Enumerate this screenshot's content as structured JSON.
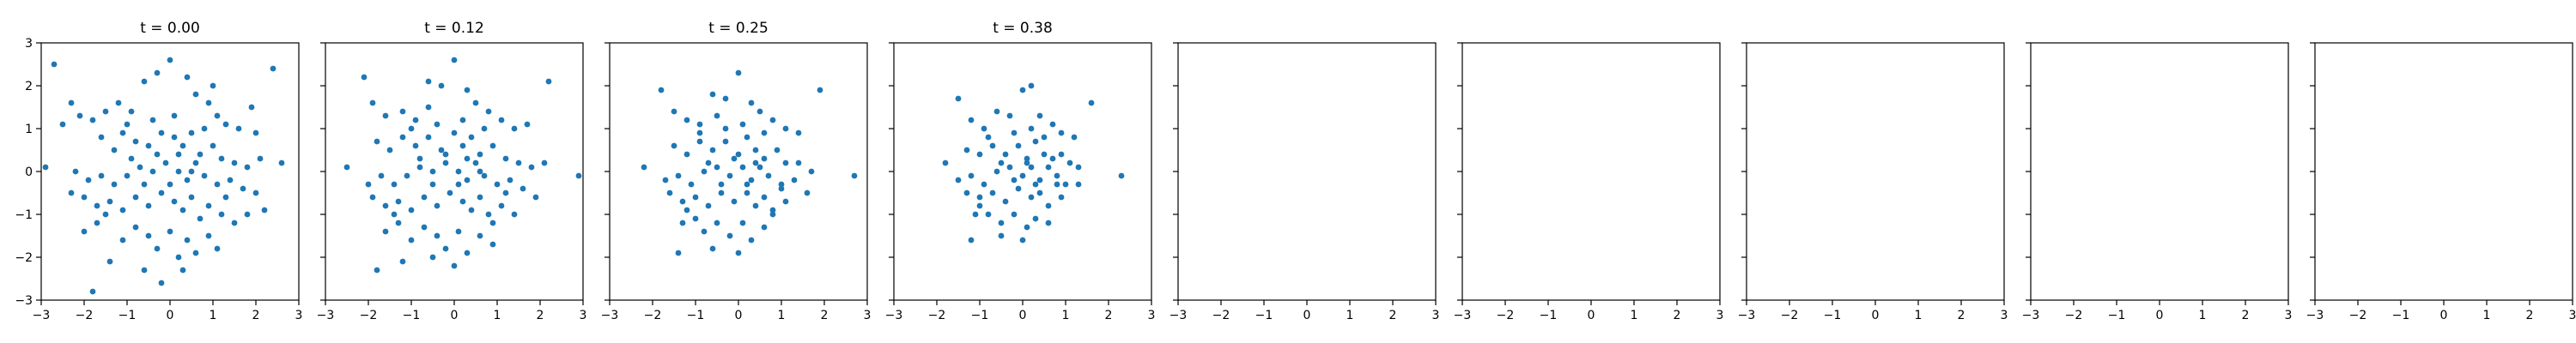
{
  "figure": {
    "background": "#ffffff",
    "marker_color": "#1f77b4",
    "axes_color": "#000000"
  },
  "chart_data": [
    {
      "type": "scatter",
      "title": "t = 0.00",
      "xlim": [
        -3,
        3
      ],
      "ylim": [
        -3,
        3
      ],
      "xticks": [
        -3,
        -2,
        -1,
        0,
        1,
        2,
        3
      ],
      "yticks": [
        -3,
        -2,
        -1,
        0,
        1,
        2,
        3
      ],
      "grid": false,
      "points": [
        [
          -2.7,
          2.5
        ],
        [
          -2.3,
          1.6
        ],
        [
          -2.1,
          1.3
        ],
        [
          -2.5,
          1.1
        ],
        [
          -1.8,
          1.2
        ],
        [
          -1.5,
          1.4
        ],
        [
          -1.2,
          1.6
        ],
        [
          -0.9,
          1.4
        ],
        [
          -0.6,
          2.1
        ],
        [
          -0.3,
          2.3
        ],
        [
          0.0,
          2.6
        ],
        [
          0.4,
          2.2
        ],
        [
          0.6,
          1.8
        ],
        [
          0.9,
          1.6
        ],
        [
          1.1,
          1.3
        ],
        [
          1.3,
          1.1
        ],
        [
          1.6,
          1.0
        ],
        [
          2.0,
          0.9
        ],
        [
          2.4,
          2.4
        ],
        [
          1.9,
          1.5
        ],
        [
          1.0,
          2.0
        ],
        [
          -1.6,
          0.8
        ],
        [
          -1.3,
          0.5
        ],
        [
          -1.1,
          0.9
        ],
        [
          -0.8,
          0.7
        ],
        [
          -0.5,
          0.6
        ],
        [
          -0.2,
          0.9
        ],
        [
          0.1,
          0.8
        ],
        [
          0.3,
          0.6
        ],
        [
          0.5,
          0.9
        ],
        [
          0.7,
          0.4
        ],
        [
          1.0,
          0.6
        ],
        [
          1.2,
          0.3
        ],
        [
          1.5,
          0.2
        ],
        [
          1.8,
          0.1
        ],
        [
          2.1,
          0.3
        ],
        [
          2.6,
          0.2
        ],
        [
          -2.9,
          0.1
        ],
        [
          -2.2,
          0.0
        ],
        [
          -1.9,
          -0.2
        ],
        [
          -1.6,
          -0.1
        ],
        [
          -1.3,
          -0.3
        ],
        [
          -1.0,
          -0.1
        ],
        [
          -0.7,
          0.1
        ],
        [
          -0.4,
          0.0
        ],
        [
          -0.1,
          0.2
        ],
        [
          0.2,
          0.0
        ],
        [
          0.4,
          -0.2
        ],
        [
          0.6,
          0.2
        ],
        [
          0.8,
          -0.1
        ],
        [
          1.1,
          -0.3
        ],
        [
          1.4,
          -0.2
        ],
        [
          1.7,
          -0.4
        ],
        [
          2.0,
          -0.5
        ],
        [
          2.2,
          -0.9
        ],
        [
          -2.3,
          -0.5
        ],
        [
          -2.0,
          -0.6
        ],
        [
          -1.7,
          -0.8
        ],
        [
          -1.4,
          -0.7
        ],
        [
          -1.1,
          -0.9
        ],
        [
          -0.8,
          -0.6
        ],
        [
          -0.5,
          -0.8
        ],
        [
          -0.2,
          -0.5
        ],
        [
          0.1,
          -0.7
        ],
        [
          0.3,
          -0.9
        ],
        [
          0.5,
          -0.6
        ],
        [
          0.7,
          -1.1
        ],
        [
          0.9,
          -0.8
        ],
        [
          1.2,
          -1.0
        ],
        [
          1.5,
          -1.2
        ],
        [
          1.8,
          -1.0
        ],
        [
          -2.0,
          -1.4
        ],
        [
          -1.7,
          -1.2
        ],
        [
          -1.4,
          -2.1
        ],
        [
          -1.1,
          -1.6
        ],
        [
          -0.8,
          -1.3
        ],
        [
          -0.5,
          -1.5
        ],
        [
          -0.3,
          -1.8
        ],
        [
          0.0,
          -1.4
        ],
        [
          0.2,
          -2.0
        ],
        [
          0.4,
          -1.6
        ],
        [
          0.6,
          -1.9
        ],
        [
          0.9,
          -1.5
        ],
        [
          1.1,
          -1.8
        ],
        [
          -1.8,
          -2.8
        ],
        [
          -0.6,
          -2.3
        ],
        [
          -0.2,
          -2.6
        ],
        [
          0.3,
          -2.3
        ],
        [
          -0.9,
          0.3
        ],
        [
          -0.6,
          -0.3
        ],
        [
          -0.3,
          0.4
        ],
        [
          0.0,
          -0.3
        ],
        [
          0.2,
          0.4
        ],
        [
          0.5,
          0.0
        ],
        [
          -1.0,
          1.1
        ],
        [
          0.8,
          1.0
        ],
        [
          -0.4,
          1.2
        ],
        [
          0.1,
          1.3
        ],
        [
          -1.5,
          -1.0
        ],
        [
          1.3,
          -0.6
        ]
      ]
    },
    {
      "type": "scatter",
      "title": "t = 0.12",
      "xlim": [
        -3,
        3
      ],
      "ylim": [
        -3,
        3
      ],
      "xticks": [
        -3,
        -2,
        -1,
        0,
        1,
        2,
        3
      ],
      "yticks": [],
      "grid": false,
      "points": [
        [
          -2.1,
          2.2
        ],
        [
          -1.9,
          1.6
        ],
        [
          -1.6,
          1.3
        ],
        [
          -1.2,
          1.4
        ],
        [
          -0.9,
          1.2
        ],
        [
          -0.6,
          2.1
        ],
        [
          -0.3,
          2.0
        ],
        [
          0.0,
          2.6
        ],
        [
          0.3,
          1.9
        ],
        [
          0.5,
          1.6
        ],
        [
          0.8,
          1.4
        ],
        [
          1.1,
          1.2
        ],
        [
          1.4,
          1.0
        ],
        [
          1.7,
          1.1
        ],
        [
          2.2,
          2.1
        ],
        [
          -2.5,
          0.1
        ],
        [
          -1.8,
          0.7
        ],
        [
          -1.5,
          0.5
        ],
        [
          -1.2,
          0.8
        ],
        [
          -0.9,
          0.6
        ],
        [
          -0.6,
          0.8
        ],
        [
          -0.3,
          0.5
        ],
        [
          0.0,
          0.9
        ],
        [
          0.2,
          0.6
        ],
        [
          0.4,
          0.8
        ],
        [
          0.6,
          0.4
        ],
        [
          0.9,
          0.6
        ],
        [
          1.2,
          0.3
        ],
        [
          1.5,
          0.2
        ],
        [
          1.8,
          0.1
        ],
        [
          2.1,
          0.2
        ],
        [
          2.9,
          -0.1
        ],
        [
          -2.0,
          -0.3
        ],
        [
          -1.7,
          -0.1
        ],
        [
          -1.4,
          -0.3
        ],
        [
          -1.1,
          -0.1
        ],
        [
          -0.8,
          0.1
        ],
        [
          -0.5,
          0.0
        ],
        [
          -0.2,
          0.2
        ],
        [
          0.1,
          0.0
        ],
        [
          0.3,
          -0.2
        ],
        [
          0.5,
          0.2
        ],
        [
          0.7,
          -0.1
        ],
        [
          1.0,
          -0.3
        ],
        [
          1.3,
          -0.2
        ],
        [
          1.6,
          -0.4
        ],
        [
          1.9,
          -0.6
        ],
        [
          -1.9,
          -0.6
        ],
        [
          -1.6,
          -0.8
        ],
        [
          -1.3,
          -0.7
        ],
        [
          -1.0,
          -0.9
        ],
        [
          -0.7,
          -0.6
        ],
        [
          -0.4,
          -0.8
        ],
        [
          -0.1,
          -0.5
        ],
        [
          0.2,
          -0.7
        ],
        [
          0.4,
          -0.9
        ],
        [
          0.6,
          -0.6
        ],
        [
          0.8,
          -1.0
        ],
        [
          1.1,
          -0.8
        ],
        [
          1.4,
          -1.0
        ],
        [
          -1.6,
          -1.4
        ],
        [
          -1.3,
          -1.2
        ],
        [
          -1.0,
          -1.6
        ],
        [
          -0.7,
          -1.3
        ],
        [
          -0.4,
          -1.5
        ],
        [
          -0.2,
          -1.8
        ],
        [
          0.1,
          -1.4
        ],
        [
          0.3,
          -1.9
        ],
        [
          0.6,
          -1.5
        ],
        [
          0.9,
          -1.7
        ],
        [
          -1.2,
          -2.1
        ],
        [
          -0.5,
          -2.0
        ],
        [
          0.0,
          -2.2
        ],
        [
          -1.8,
          -2.3
        ],
        [
          -0.8,
          0.3
        ],
        [
          -0.5,
          -0.3
        ],
        [
          -0.2,
          0.4
        ],
        [
          0.1,
          -0.3
        ],
        [
          0.3,
          0.3
        ],
        [
          0.6,
          0.0
        ],
        [
          -1.0,
          1.0
        ],
        [
          0.7,
          1.0
        ],
        [
          -0.4,
          1.1
        ],
        [
          0.2,
          1.2
        ],
        [
          -1.4,
          -1.0
        ],
        [
          1.2,
          -0.5
        ],
        [
          -0.6,
          1.5
        ],
        [
          0.9,
          -1.2
        ]
      ]
    },
    {
      "type": "scatter",
      "title": "t = 0.25",
      "xlim": [
        -3,
        3
      ],
      "ylim": [
        -3,
        3
      ],
      "xticks": [
        -3,
        -2,
        -1,
        0,
        1,
        2,
        3
      ],
      "yticks": [],
      "grid": false,
      "points": [
        [
          -1.8,
          1.9
        ],
        [
          -1.5,
          1.4
        ],
        [
          -1.2,
          1.2
        ],
        [
          -0.9,
          1.1
        ],
        [
          -0.6,
          1.8
        ],
        [
          -0.3,
          1.7
        ],
        [
          0.0,
          2.3
        ],
        [
          0.3,
          1.6
        ],
        [
          0.5,
          1.4
        ],
        [
          0.8,
          1.2
        ],
        [
          1.1,
          1.0
        ],
        [
          1.4,
          0.9
        ],
        [
          1.9,
          1.9
        ],
        [
          -2.2,
          0.1
        ],
        [
          -1.5,
          0.6
        ],
        [
          -1.2,
          0.4
        ],
        [
          -0.9,
          0.7
        ],
        [
          -0.6,
          0.5
        ],
        [
          -0.3,
          0.7
        ],
        [
          0.0,
          0.4
        ],
        [
          0.2,
          0.8
        ],
        [
          0.4,
          0.5
        ],
        [
          0.6,
          0.3
        ],
        [
          0.9,
          0.5
        ],
        [
          1.1,
          0.2
        ],
        [
          1.4,
          0.2
        ],
        [
          1.7,
          0.0
        ],
        [
          2.7,
          -0.1
        ],
        [
          -1.7,
          -0.2
        ],
        [
          -1.4,
          -0.1
        ],
        [
          -1.1,
          -0.3
        ],
        [
          -0.8,
          0.0
        ],
        [
          -0.5,
          0.1
        ],
        [
          -0.2,
          -0.1
        ],
        [
          0.1,
          0.1
        ],
        [
          0.3,
          -0.2
        ],
        [
          0.5,
          0.1
        ],
        [
          0.7,
          -0.1
        ],
        [
          1.0,
          -0.3
        ],
        [
          1.3,
          -0.2
        ],
        [
          1.6,
          -0.5
        ],
        [
          -1.6,
          -0.5
        ],
        [
          -1.3,
          -0.7
        ],
        [
          -1.0,
          -0.6
        ],
        [
          -0.7,
          -0.8
        ],
        [
          -0.4,
          -0.5
        ],
        [
          -0.1,
          -0.7
        ],
        [
          0.2,
          -0.5
        ],
        [
          0.4,
          -0.8
        ],
        [
          0.6,
          -0.6
        ],
        [
          0.8,
          -0.9
        ],
        [
          1.1,
          -0.7
        ],
        [
          -1.3,
          -1.2
        ],
        [
          -1.0,
          -1.1
        ],
        [
          -0.8,
          -1.4
        ],
        [
          -0.5,
          -1.2
        ],
        [
          -0.2,
          -1.5
        ],
        [
          0.1,
          -1.2
        ],
        [
          0.3,
          -1.6
        ],
        [
          0.6,
          -1.3
        ],
        [
          -1.4,
          -1.9
        ],
        [
          -0.6,
          -1.8
        ],
        [
          0.0,
          -1.9
        ],
        [
          -0.7,
          0.2
        ],
        [
          -0.4,
          -0.3
        ],
        [
          -0.1,
          0.3
        ],
        [
          0.2,
          -0.3
        ],
        [
          0.4,
          0.2
        ],
        [
          -0.9,
          0.9
        ],
        [
          0.6,
          0.9
        ],
        [
          -0.3,
          1.0
        ],
        [
          0.1,
          1.1
        ],
        [
          -1.2,
          -0.9
        ],
        [
          1.0,
          -0.4
        ],
        [
          -0.5,
          1.3
        ],
        [
          0.8,
          -1.0
        ]
      ]
    },
    {
      "type": "scatter",
      "title": "t = 0.38",
      "xlim": [
        -3,
        3
      ],
      "ylim": [
        -3,
        3
      ],
      "xticks": [
        -3,
        -2,
        -1,
        0,
        1,
        2,
        3
      ],
      "yticks": [],
      "grid": false,
      "points": [
        [
          -1.5,
          1.7
        ],
        [
          -1.2,
          1.2
        ],
        [
          -0.9,
          1.0
        ],
        [
          -0.6,
          1.4
        ],
        [
          -0.3,
          1.3
        ],
        [
          0.0,
          1.9
        ],
        [
          0.2,
          2.0
        ],
        [
          0.4,
          1.3
        ],
        [
          0.7,
          1.1
        ],
        [
          0.9,
          0.9
        ],
        [
          1.2,
          0.8
        ],
        [
          1.6,
          1.6
        ],
        [
          -1.8,
          0.2
        ],
        [
          -1.3,
          0.5
        ],
        [
          -1.0,
          0.4
        ],
        [
          -0.7,
          0.6
        ],
        [
          -0.4,
          0.4
        ],
        [
          -0.1,
          0.6
        ],
        [
          0.1,
          0.3
        ],
        [
          0.3,
          0.7
        ],
        [
          0.5,
          0.4
        ],
        [
          0.7,
          0.3
        ],
        [
          0.9,
          0.4
        ],
        [
          1.1,
          0.2
        ],
        [
          1.3,
          0.1
        ],
        [
          2.3,
          -0.1
        ],
        [
          -1.5,
          -0.2
        ],
        [
          -1.2,
          -0.1
        ],
        [
          -0.9,
          -0.3
        ],
        [
          -0.6,
          0.0
        ],
        [
          -0.3,
          0.1
        ],
        [
          0.0,
          -0.1
        ],
        [
          0.2,
          0.1
        ],
        [
          0.4,
          -0.2
        ],
        [
          0.6,
          0.1
        ],
        [
          0.8,
          -0.1
        ],
        [
          1.0,
          -0.3
        ],
        [
          1.3,
          -0.3
        ],
        [
          -1.3,
          -0.5
        ],
        [
          -1.0,
          -0.6
        ],
        [
          -0.7,
          -0.5
        ],
        [
          -0.4,
          -0.7
        ],
        [
          -0.1,
          -0.4
        ],
        [
          0.2,
          -0.6
        ],
        [
          0.4,
          -0.5
        ],
        [
          0.6,
          -0.8
        ],
        [
          0.9,
          -0.6
        ],
        [
          -1.1,
          -1.0
        ],
        [
          -0.8,
          -1.0
        ],
        [
          -0.5,
          -1.2
        ],
        [
          -0.2,
          -1.0
        ],
        [
          0.1,
          -1.3
        ],
        [
          0.3,
          -1.1
        ],
        [
          0.6,
          -1.2
        ],
        [
          -1.2,
          -1.6
        ],
        [
          -0.5,
          -1.5
        ],
        [
          0.0,
          -1.6
        ],
        [
          -0.5,
          0.2
        ],
        [
          -0.2,
          -0.2
        ],
        [
          0.1,
          0.2
        ],
        [
          0.3,
          -0.3
        ],
        [
          -0.8,
          0.8
        ],
        [
          0.5,
          0.8
        ],
        [
          -0.2,
          0.9
        ],
        [
          0.2,
          1.0
        ],
        [
          -1.0,
          -0.8
        ],
        [
          0.8,
          -0.3
        ]
      ]
    },
    {
      "type": "scatter",
      "title": "",
      "xlim": [
        -3,
        3
      ],
      "ylim": [
        -3,
        3
      ],
      "xticks": [
        -3,
        -2,
        -1,
        0,
        1,
        2,
        3
      ],
      "yticks": [],
      "grid": false,
      "points": []
    },
    {
      "type": "scatter",
      "title": "",
      "xlim": [
        -3,
        3
      ],
      "ylim": [
        -3,
        3
      ],
      "xticks": [
        -3,
        -2,
        -1,
        0,
        1,
        2,
        3
      ],
      "yticks": [],
      "grid": false,
      "points": []
    },
    {
      "type": "scatter",
      "title": "",
      "xlim": [
        -3,
        3
      ],
      "ylim": [
        -3,
        3
      ],
      "xticks": [
        -3,
        -2,
        -1,
        0,
        1,
        2,
        3
      ],
      "yticks": [],
      "grid": false,
      "points": []
    },
    {
      "type": "scatter",
      "title": "",
      "xlim": [
        -3,
        3
      ],
      "ylim": [
        -3,
        3
      ],
      "xticks": [
        -3,
        -2,
        -1,
        0,
        1,
        2,
        3
      ],
      "yticks": [],
      "grid": false,
      "points": []
    },
    {
      "type": "scatter",
      "title": "",
      "xlim": [
        -3,
        3
      ],
      "ylim": [
        -3,
        3
      ],
      "xticks": [
        -3,
        -2,
        -1,
        0,
        1,
        2,
        3
      ],
      "yticks": [],
      "grid": false,
      "points": []
    }
  ]
}
